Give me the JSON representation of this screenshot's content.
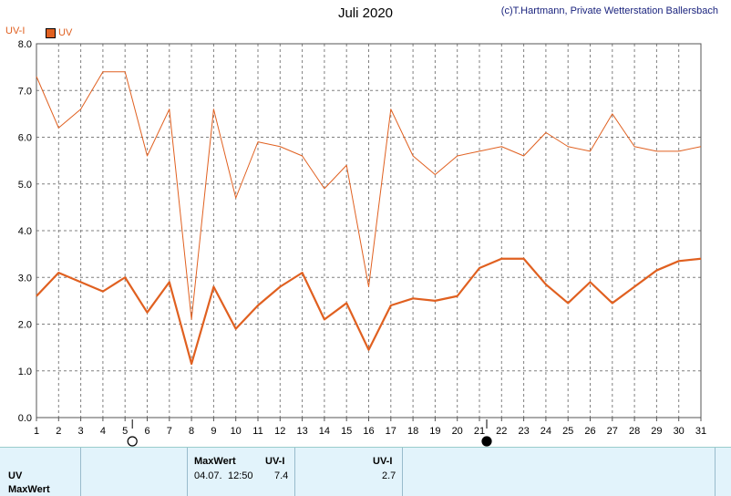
{
  "header": {
    "title": "Juli 2020",
    "copyright": "(c)T.Hartmann, Private Wetterstation Ballersbach"
  },
  "colors": {
    "series": "#e06020",
    "grid": "#808080",
    "panel": "#e2f3fb"
  },
  "chart_data": {
    "type": "line",
    "title": "Juli 2020",
    "ylabel": "UV-I",
    "ylim": [
      0,
      8
    ],
    "yticks": [
      "0.0",
      "1.0",
      "2.0",
      "3.0",
      "4.0",
      "5.0",
      "6.0",
      "7.0",
      "8.0"
    ],
    "x": [
      1,
      2,
      3,
      4,
      5,
      6,
      7,
      8,
      9,
      10,
      11,
      12,
      13,
      14,
      15,
      16,
      17,
      18,
      19,
      20,
      21,
      22,
      23,
      24,
      25,
      26,
      27,
      28,
      29,
      30,
      31
    ],
    "grid": true,
    "legend_position": "top-left",
    "series": [
      {
        "name": "UV",
        "role": "mean",
        "values": [
          2.6,
          3.1,
          2.9,
          2.7,
          3.0,
          2.25,
          2.9,
          1.15,
          2.8,
          1.9,
          2.4,
          2.8,
          3.1,
          2.1,
          2.45,
          1.45,
          2.4,
          2.55,
          2.5,
          2.6,
          3.2,
          3.4,
          3.4,
          2.85,
          2.45,
          2.9,
          2.45,
          2.8,
          3.15,
          3.35,
          3.4
        ]
      },
      {
        "role": "max",
        "values": [
          7.3,
          6.2,
          6.6,
          7.4,
          7.4,
          5.6,
          6.6,
          2.1,
          6.6,
          4.7,
          5.9,
          5.8,
          5.6,
          4.9,
          5.4,
          2.8,
          6.6,
          5.6,
          5.2,
          5.6,
          5.7,
          5.8,
          5.6,
          6.1,
          5.8,
          5.7,
          6.5,
          5.8,
          5.7,
          5.7,
          5.8
        ]
      }
    ],
    "moon_phases": [
      {
        "day": 5,
        "phase": "full"
      },
      {
        "day": 21,
        "phase": "new"
      }
    ]
  },
  "legend": {
    "label": "UV"
  },
  "panel": {
    "row1": "UV",
    "row2": "MaxWert",
    "maxwert_label": "MaxWert",
    "unit1": "UV-I",
    "unit2": "UV-I",
    "max_date": "04.07.",
    "max_time": "12:50",
    "max_value": "7.4",
    "value2": "2.7"
  }
}
